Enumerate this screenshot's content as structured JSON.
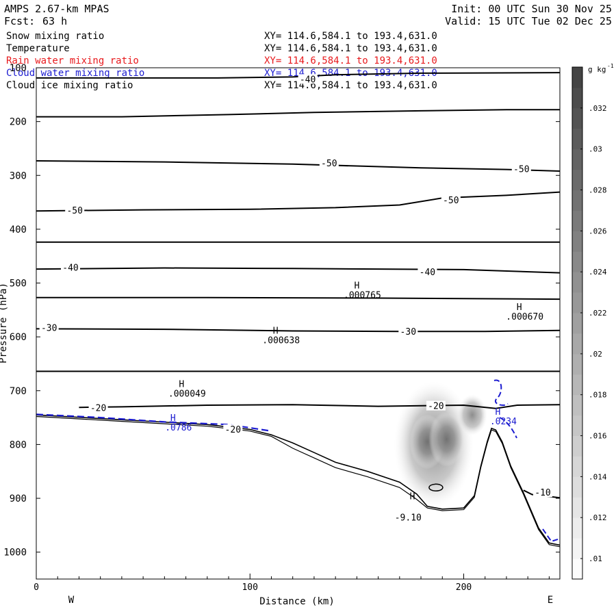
{
  "header": {
    "model": "AMPS 2.67-km MPAS",
    "fcst_label": "Fcst:",
    "fcst_value": "63 h",
    "init": "Init: 00 UTC Sun 30 Nov 25",
    "valid": "Valid: 15 UTC Tue 02 Dec 25"
  },
  "fields": [
    {
      "name": "Snow mixing ratio",
      "xy": "XY= 114.6,584.1 to 193.4,631.0",
      "color": "#000000"
    },
    {
      "name": "Temperature",
      "xy": "XY= 114.6,584.1 to 193.4,631.0",
      "color": "#000000"
    },
    {
      "name": "Rain water mixing ratio",
      "xy": "XY= 114.6,584.1 to 193.4,631.0",
      "color": "#e8191c"
    },
    {
      "name": "Cloud water mixing ratio",
      "xy": "XY= 114.6,584.1 to 193.4,631.0",
      "color": "#1b1bd0"
    },
    {
      "name": "Cloud ice mixing ratio",
      "xy": "XY= 114.6,584.1 to 193.4,631.0",
      "color": "#000000"
    }
  ],
  "chart_data": {
    "type": "cross-section contour",
    "xlabel": "Distance (km)",
    "ylabel": "Pressure (hPa)",
    "xlim": [
      0,
      245
    ],
    "ylim": [
      1050,
      100
    ],
    "x_ticks": [
      0,
      100,
      200
    ],
    "y_ticks": [
      100,
      200,
      300,
      400,
      500,
      600,
      700,
      800,
      900,
      1000
    ],
    "direction_labels": {
      "left": "W",
      "right": "E"
    },
    "colorbar": {
      "unit": "g kg",
      "unit_sup": "-1",
      "labels": [
        ".01",
        ".012",
        ".014",
        ".016",
        ".018",
        ".02",
        ".022",
        ".024",
        ".026",
        ".028",
        ".03",
        ".032"
      ],
      "min": 0.009,
      "max": 0.034
    },
    "temperature_contours": [
      {
        "label": "-40",
        "points": [
          [
            0,
            119
          ],
          [
            45,
            119
          ],
          [
            85,
            119
          ],
          [
            120,
            117
          ],
          [
            140,
            113
          ],
          [
            180,
            110
          ],
          [
            245,
            109
          ]
        ]
      },
      {
        "label": "",
        "points": [
          [
            0,
            191
          ],
          [
            40,
            191
          ],
          [
            90,
            187
          ],
          [
            130,
            183
          ],
          [
            180,
            180
          ],
          [
            220,
            178
          ],
          [
            245,
            178
          ]
        ]
      },
      {
        "label": "-50",
        "points": [
          [
            0,
            273
          ],
          [
            60,
            275
          ],
          [
            120,
            279
          ],
          [
            180,
            286
          ],
          [
            220,
            289
          ],
          [
            245,
            292
          ]
        ]
      },
      {
        "label": "-50",
        "points": [
          [
            0,
            366
          ],
          [
            50,
            364
          ],
          [
            100,
            363
          ],
          [
            140,
            360
          ],
          [
            170,
            355
          ],
          [
            190,
            342
          ],
          [
            220,
            337
          ],
          [
            245,
            331
          ]
        ]
      },
      {
        "label": "",
        "points": [
          [
            0,
            424
          ],
          [
            100,
            424
          ],
          [
            200,
            424
          ],
          [
            245,
            424
          ]
        ]
      },
      {
        "label": "-40",
        "points": [
          [
            0,
            474
          ],
          [
            60,
            472
          ],
          [
            120,
            473
          ],
          [
            160,
            474
          ],
          [
            200,
            475
          ],
          [
            245,
            481
          ]
        ]
      },
      {
        "label": "",
        "points": [
          [
            0,
            527
          ],
          [
            80,
            527
          ],
          [
            160,
            528
          ],
          [
            245,
            530
          ]
        ]
      },
      {
        "label": "-30",
        "points": [
          [
            0,
            585
          ],
          [
            60,
            586
          ],
          [
            120,
            589
          ],
          [
            170,
            590
          ],
          [
            210,
            590
          ],
          [
            245,
            588
          ]
        ]
      },
      {
        "label": "",
        "points": [
          [
            0,
            664
          ],
          [
            100,
            664
          ],
          [
            200,
            664
          ],
          [
            245,
            664
          ]
        ]
      },
      {
        "label": "-20",
        "points": [
          [
            20,
            731
          ],
          [
            40,
            730
          ],
          [
            80,
            727
          ],
          [
            120,
            726
          ],
          [
            160,
            729
          ],
          [
            200,
            727
          ],
          [
            215,
            733
          ],
          [
            225,
            727
          ],
          [
            245,
            726
          ]
        ]
      },
      {
        "label": "-10",
        "points": [
          [
            228,
            885
          ],
          [
            232,
            893
          ],
          [
            245,
            899
          ]
        ]
      }
    ],
    "label_positions": [
      {
        "text": "-40",
        "x": 127,
        "y": 122
      },
      {
        "text": "-50",
        "x": 137,
        "y": 278
      },
      {
        "text": "-50",
        "x": 227,
        "y": 289
      },
      {
        "text": "-50",
        "x": 18,
        "y": 366
      },
      {
        "text": "-50",
        "x": 194,
        "y": 347
      },
      {
        "text": "-40",
        "x": 16,
        "y": 472
      },
      {
        "text": "-40",
        "x": 183,
        "y": 480
      },
      {
        "text": "-30",
        "x": 6,
        "y": 584
      },
      {
        "text": "-30",
        "x": 174,
        "y": 591
      },
      {
        "text": "-20",
        "x": 29,
        "y": 733
      },
      {
        "text": "-20",
        "x": 187,
        "y": 729
      },
      {
        "text": "-20",
        "x": 92,
        "y": 773
      },
      {
        "text": "-10",
        "x": 237,
        "y": 890
      },
      {
        "text": "-9.10",
        "x": 174,
        "y": 936
      }
    ],
    "terrain": [
      [
        0,
        745
      ],
      [
        40,
        754
      ],
      [
        80,
        763
      ],
      [
        100,
        772
      ],
      [
        110,
        782
      ],
      [
        120,
        797
      ],
      [
        130,
        815
      ],
      [
        140,
        833
      ],
      [
        155,
        850
      ],
      [
        170,
        870
      ],
      [
        178,
        892
      ],
      [
        183,
        915
      ],
      [
        190,
        920
      ],
      [
        200,
        918
      ],
      [
        205,
        895
      ],
      [
        208,
        840
      ],
      [
        211,
        795
      ],
      [
        213,
        770
      ],
      [
        215,
        773
      ],
      [
        218,
        795
      ],
      [
        222,
        840
      ],
      [
        228,
        890
      ],
      [
        235,
        955
      ],
      [
        240,
        983
      ],
      [
        245,
        987
      ]
    ],
    "cloud_water": [
      [
        0,
        744
      ],
      [
        30,
        750
      ],
      [
        60,
        758
      ],
      [
        90,
        763
      ],
      [
        110,
        775
      ]
    ],
    "maxima": [
      {
        "marker": "H",
        "value": ".000765",
        "x": 150,
        "y": 510,
        "color": "#000000"
      },
      {
        "marker": "H",
        "value": ".000670",
        "x": 226,
        "y": 550,
        "color": "#000000"
      },
      {
        "marker": "H",
        "value": ".000638",
        "x": 112,
        "y": 594,
        "color": "#000000"
      },
      {
        "marker": "H",
        "value": ".000049",
        "x": 68,
        "y": 693,
        "color": "#000000"
      },
      {
        "marker": "H",
        "value": ".0786",
        "x": 64,
        "y": 756,
        "color": "#1b1bd0"
      },
      {
        "marker": "H",
        "value": ".0234",
        "x": 216,
        "y": 745,
        "color": "#1b1bd0"
      },
      {
        "marker": "H",
        "value": "",
        "x": 176,
        "y": 902,
        "color": "#000000"
      }
    ],
    "snow_maxima": [
      {
        "x": 183,
        "y": 795,
        "value": 0.022
      },
      {
        "x": 192,
        "y": 790,
        "value": 0.02
      }
    ]
  }
}
